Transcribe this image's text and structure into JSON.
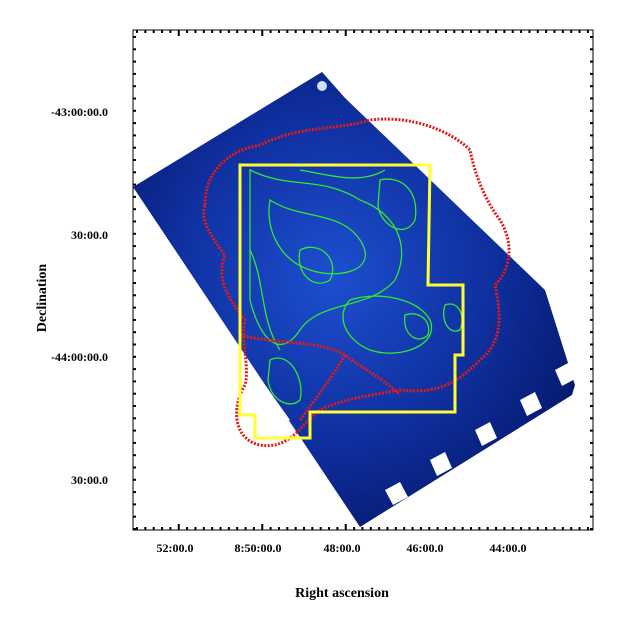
{
  "plot": {
    "x_label": "Right ascension",
    "y_label": "Declination",
    "x_tick_labels": [
      "52:00.0",
      "8:50:00.0",
      "48:00.0",
      "46:00.0",
      "44:00.0"
    ],
    "y_tick_labels": [
      "-43:00:00.0",
      "30:00.0",
      "-44:00:00.0",
      "30:00.0"
    ]
  }
}
